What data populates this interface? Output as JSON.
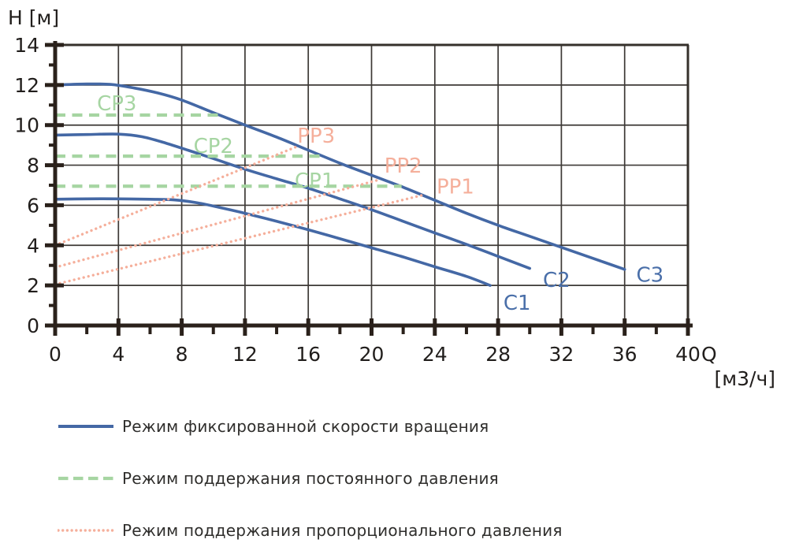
{
  "figure": {
    "background": "#ffffff",
    "axis_color": "#2a211b",
    "grid_color": "#3d3936",
    "frame_color": "#35302b",
    "tick_text_color": "#211e1c",
    "legend_text_color": "#2f2e2c"
  },
  "chart_data": {
    "type": "line",
    "title": "",
    "grid": "on",
    "legend_position": "bottom",
    "x_axis": {
      "name": "Q",
      "unit_label": "[м3/ч]",
      "min": 0,
      "max": 40,
      "major_tick_step": 4,
      "minor_tick_step": 2,
      "tick_labels": [
        "0",
        "4",
        "8",
        "12",
        "16",
        "20",
        "24",
        "28",
        "32",
        "36",
        "40"
      ]
    },
    "y_axis": {
      "name": "H [м]",
      "min": 0,
      "max": 14,
      "major_tick_step": 2,
      "minor_tick_step": 1,
      "tick_labels": [
        "0",
        "2",
        "4",
        "6",
        "8",
        "10",
        "12",
        "14"
      ]
    },
    "series": [
      {
        "id": "C1",
        "group": "fixed-speed-curve",
        "style": "solid",
        "color": "#4468a5",
        "label": {
          "text": "C1",
          "x": 29.2,
          "y": 1.15,
          "color": "#4a6fa9"
        },
        "points": [
          [
            0,
            6.3
          ],
          [
            2,
            6.32
          ],
          [
            4,
            6.32
          ],
          [
            6,
            6.3
          ],
          [
            7.5,
            6.27
          ],
          [
            9,
            6.12
          ],
          [
            10.5,
            5.87
          ],
          [
            12,
            5.6
          ],
          [
            14,
            5.2
          ],
          [
            16,
            4.78
          ],
          [
            18,
            4.33
          ],
          [
            20,
            3.88
          ],
          [
            22,
            3.42
          ],
          [
            24,
            2.93
          ],
          [
            26,
            2.45
          ],
          [
            27.5,
            2.0
          ]
        ]
      },
      {
        "id": "C2",
        "group": "fixed-speed-curve",
        "style": "solid",
        "color": "#4468a5",
        "label": {
          "text": "C2",
          "x": 31.7,
          "y": 2.3,
          "color": "#4a6fa9"
        },
        "points": [
          [
            0,
            9.5
          ],
          [
            2,
            9.53
          ],
          [
            4,
            9.55
          ],
          [
            5.5,
            9.42
          ],
          [
            7,
            9.1
          ],
          [
            8.5,
            8.72
          ],
          [
            10,
            8.33
          ],
          [
            12,
            7.8
          ],
          [
            14,
            7.32
          ],
          [
            16,
            6.85
          ],
          [
            18,
            6.32
          ],
          [
            20,
            5.78
          ],
          [
            22,
            5.2
          ],
          [
            24,
            4.62
          ],
          [
            26,
            4.05
          ],
          [
            28,
            3.45
          ],
          [
            30,
            2.85
          ]
        ]
      },
      {
        "id": "C3",
        "group": "fixed-speed-curve",
        "style": "solid",
        "color": "#4468a5",
        "label": {
          "text": "C3",
          "x": 37.6,
          "y": 2.55,
          "color": "#4a6fa9"
        },
        "points": [
          [
            0,
            12.0
          ],
          [
            2,
            12.05
          ],
          [
            3.5,
            12.03
          ],
          [
            5,
            11.85
          ],
          [
            6.5,
            11.6
          ],
          [
            8,
            11.25
          ],
          [
            10,
            10.62
          ],
          [
            12,
            10.0
          ],
          [
            14,
            9.4
          ],
          [
            16,
            8.75
          ],
          [
            18,
            8.1
          ],
          [
            20,
            7.5
          ],
          [
            22,
            6.9
          ],
          [
            24,
            6.25
          ],
          [
            26,
            5.6
          ],
          [
            28,
            5.0
          ],
          [
            30,
            4.45
          ],
          [
            32,
            3.9
          ],
          [
            34,
            3.35
          ],
          [
            36,
            2.8
          ]
        ]
      },
      {
        "id": "CP3",
        "group": "constant-pressure-line",
        "style": "dashed",
        "color": "#a6d5a2",
        "label": {
          "text": "CP3",
          "x": 3.9,
          "y": 11.1,
          "color": "#a6d5a2"
        },
        "points": [
          [
            0,
            10.5
          ],
          [
            10.3,
            10.5
          ]
        ]
      },
      {
        "id": "CP2",
        "group": "constant-pressure-line",
        "style": "dashed",
        "color": "#a6d5a2",
        "label": {
          "text": "CP2",
          "x": 10.0,
          "y": 8.98,
          "color": "#a6d5a2"
        },
        "points": [
          [
            0,
            8.45
          ],
          [
            16.9,
            8.45
          ]
        ]
      },
      {
        "id": "CP1",
        "group": "constant-pressure-line",
        "style": "dashed",
        "color": "#a6d5a2",
        "label": {
          "text": "CP1",
          "x": 16.4,
          "y": 7.25,
          "color": "#a6d5a2"
        },
        "points": [
          [
            0,
            6.95
          ],
          [
            21.9,
            6.95
          ]
        ]
      },
      {
        "id": "PP3",
        "group": "proportional-pressure-line",
        "style": "dotted",
        "color": "#f5af9b",
        "label": {
          "text": "PP3",
          "x": 16.5,
          "y": 9.5,
          "color": "#f5af9b"
        },
        "points": [
          [
            0,
            4.0
          ],
          [
            15.35,
            8.95
          ]
        ]
      },
      {
        "id": "PP2",
        "group": "proportional-pressure-line",
        "style": "dotted",
        "color": "#f5af9b",
        "label": {
          "text": "PP2",
          "x": 22.0,
          "y": 8.0,
          "color": "#f5af9b"
        },
        "points": [
          [
            0,
            2.9
          ],
          [
            20.6,
            7.3
          ]
        ]
      },
      {
        "id": "PP1",
        "group": "proportional-pressure-line",
        "style": "dotted",
        "color": "#f5af9b",
        "label": {
          "text": "PP1",
          "x": 25.3,
          "y": 6.95,
          "color": "#f5af9b"
        },
        "points": [
          [
            0,
            2.05
          ],
          [
            23.2,
            6.5
          ]
        ]
      }
    ],
    "legend": [
      {
        "style": "solid",
        "color": "#4468a5",
        "label": "Режим фиксированной скорости вращения"
      },
      {
        "style": "dashed",
        "color": "#a6d5a2",
        "label": "Режим поддержания постоянного давления"
      },
      {
        "style": "dotted",
        "color": "#f5af9b",
        "label": "Режим поддержания пропорционального давления"
      }
    ]
  }
}
